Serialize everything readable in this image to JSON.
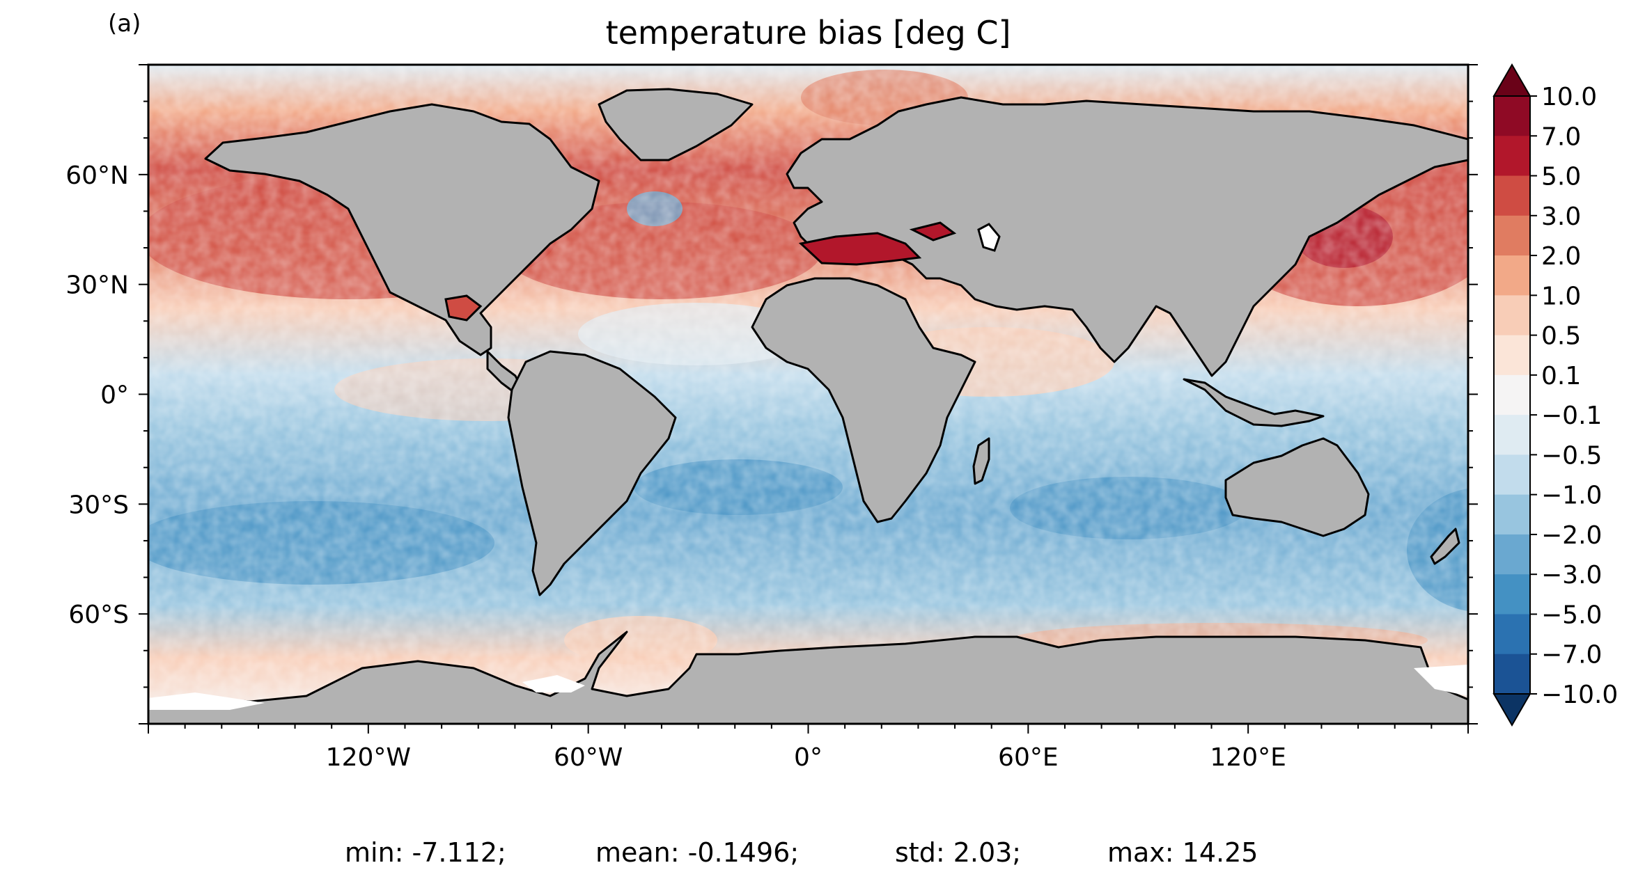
{
  "panel_label": "(a)",
  "title": "temperature bias [deg C]",
  "axes": {
    "x_ticks": [
      "120°W",
      "60°W",
      "0°",
      "60°E",
      "120°E"
    ],
    "y_ticks": [
      "60°N",
      "30°N",
      "0°",
      "30°S",
      "60°S"
    ]
  },
  "colorbar": {
    "labels": [
      "10.0",
      "7.0",
      "5.0",
      "3.0",
      "2.0",
      "1.0",
      "0.5",
      "0.1",
      "−0.1",
      "−0.5",
      "−1.0",
      "−2.0",
      "−3.0",
      "−5.0",
      "−7.0",
      "−10.0"
    ],
    "colors_top_to_bottom": [
      "#8f0a25",
      "#b2172b",
      "#cf4c43",
      "#e07c61",
      "#f2a988",
      "#f8cdb7",
      "#fbe5d8",
      "#f5f4f4",
      "#dfebf2",
      "#c2dcec",
      "#98c5df",
      "#6aa8d0",
      "#4491c3",
      "#2b72b1",
      "#1b5395"
    ],
    "over_color": "#6a0218",
    "under_color": "#0c3464"
  },
  "land_color": "#b2b2b2",
  "stats": {
    "min": "min: -7.112;",
    "mean": "mean: -0.1496;",
    "std": "std: 2.03;",
    "max": "max: 14.25"
  }
}
